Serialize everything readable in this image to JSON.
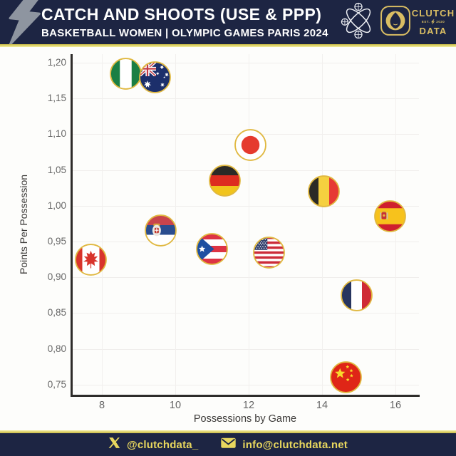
{
  "header": {
    "title": "CATCH AND SHOOTS (USE & PPP)",
    "subtitle": "BASKETBALL WOMEN | OLYMPIC GAMES PARIS 2024",
    "brand": {
      "top": "CLUTCH",
      "est": "EST.",
      "year": "2020",
      "bottom": "DATA"
    },
    "icons": {
      "left": "lightning-bolt",
      "right": [
        "crossed-basketball-hoops",
        "paris-2024-flame"
      ]
    }
  },
  "colors": {
    "navy": "#1d2543",
    "gold_divider": "#e9dc63",
    "brand_gold": "#d9bd63",
    "flag_ring_gold": "#e0b840",
    "chart_background": "#fdfdfb",
    "axis": "#2e2c2a",
    "gridline": "#f0eeec"
  },
  "chart_data": {
    "type": "scatter",
    "title": "Catch and Shoots (Use & PPP)",
    "xlabel": "Possessions by Game",
    "ylabel": "Points Per Possession",
    "xlim": [
      7.1,
      16.6
    ],
    "ylim": [
      0.735,
      1.21
    ],
    "xticks": [
      8,
      10,
      12,
      14,
      16
    ],
    "ytick_labels": [
      "1,20",
      "1,15",
      "1,10",
      "1,05",
      "1,00",
      "0,95",
      "0,90",
      "0,85",
      "0,80",
      "0,75"
    ],
    "ytick_values": [
      1.2,
      1.15,
      1.1,
      1.05,
      1.0,
      0.95,
      0.9,
      0.85,
      0.8,
      0.75
    ],
    "grid": true,
    "legend": "none",
    "marker_style": "circular country flag with gold ring",
    "points": [
      {
        "team": "Nigeria",
        "flag": "nigeria",
        "x": 8.65,
        "y": 1.185
      },
      {
        "team": "Australia",
        "flag": "australia",
        "x": 9.45,
        "y": 1.18
      },
      {
        "team": "Japan",
        "flag": "japan",
        "x": 12.05,
        "y": 1.085
      },
      {
        "team": "Germany",
        "flag": "germany",
        "x": 11.35,
        "y": 1.035
      },
      {
        "team": "Belgium",
        "flag": "belgium",
        "x": 14.05,
        "y": 1.02
      },
      {
        "team": "Spain",
        "flag": "spain",
        "x": 15.85,
        "y": 0.985
      },
      {
        "team": "Serbia",
        "flag": "serbia",
        "x": 9.6,
        "y": 0.965
      },
      {
        "team": "Puerto Rico",
        "flag": "puerto-rico",
        "x": 11.0,
        "y": 0.94
      },
      {
        "team": "USA",
        "flag": "usa",
        "x": 12.55,
        "y": 0.935
      },
      {
        "team": "Canada",
        "flag": "canada",
        "x": 7.7,
        "y": 0.925
      },
      {
        "team": "France",
        "flag": "france",
        "x": 14.95,
        "y": 0.875
      },
      {
        "team": "China",
        "flag": "china",
        "x": 14.65,
        "y": 0.76
      }
    ]
  },
  "footer": {
    "twitter_handle": "@clutchdata_",
    "email": "info@clutchdata.net"
  }
}
